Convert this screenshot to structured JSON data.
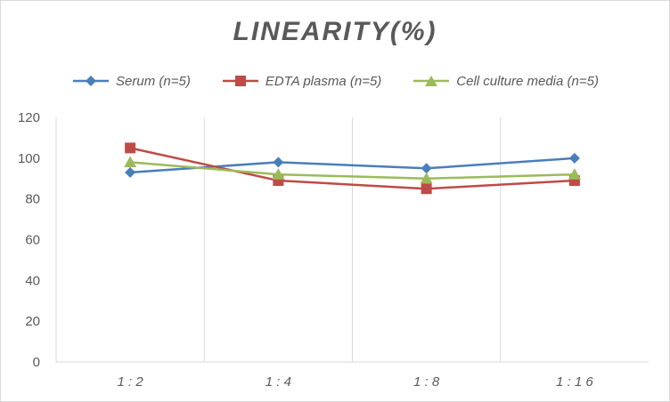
{
  "chart_data": {
    "type": "line",
    "title": "LINEARITY(%)",
    "categories": [
      "1:2",
      "1:4",
      "1:8",
      "1:16"
    ],
    "series": [
      {
        "name": "Serum (n=5)",
        "values": [
          93,
          98,
          95,
          100
        ],
        "color": "#4a7ebb",
        "marker": "diamond"
      },
      {
        "name": "EDTA plasma (n=5)",
        "values": [
          105,
          89,
          85,
          89
        ],
        "color": "#be4b48",
        "marker": "square"
      },
      {
        "name": "Cell culture media (n=5)",
        "values": [
          98,
          92,
          90,
          92
        ],
        "color": "#9bbb59",
        "marker": "triangle"
      }
    ],
    "yticks": [
      "0",
      "20",
      "40",
      "60",
      "80",
      "100",
      "120"
    ],
    "ylim": [
      0,
      120
    ],
    "xlabel": "",
    "ylabel": "",
    "grid": "vertical between categories",
    "legend_position": "top"
  }
}
